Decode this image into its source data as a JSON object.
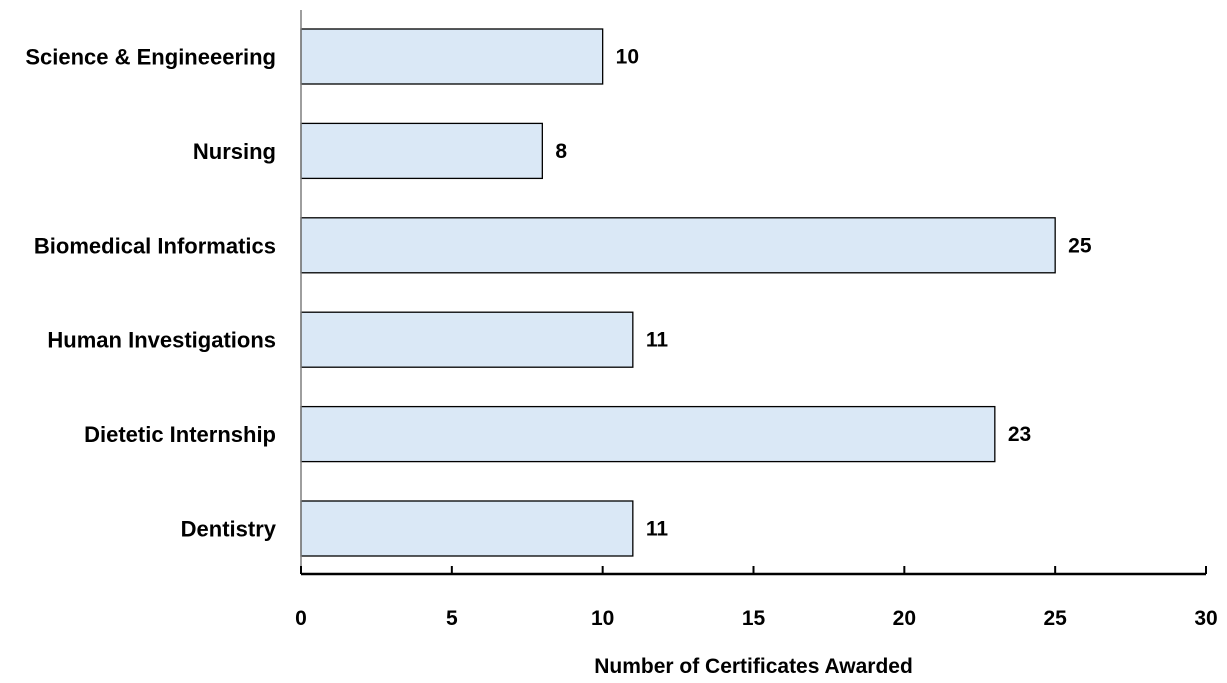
{
  "chart_data": {
    "type": "bar",
    "orientation": "horizontal",
    "categories": [
      "Science & Engineeering",
      "Nursing",
      "Biomedical Informatics",
      "Human Investigations",
      "Dietetic Internship",
      "Dentistry"
    ],
    "values": [
      10,
      8,
      25,
      11,
      23,
      11
    ],
    "data_labels": [
      "10",
      "8",
      "25",
      "11",
      "23",
      "11"
    ],
    "xlabel": "Number of Certificates Awarded",
    "ylabel": "",
    "xlim": [
      0,
      30
    ],
    "x_ticks": [
      0,
      5,
      10,
      15,
      20,
      25,
      30
    ],
    "x_tick_labels": [
      "0",
      "5",
      "10",
      "15",
      "20",
      "25",
      "30"
    ],
    "grid": false,
    "legend": "none",
    "bar_color": "#dae8f6",
    "bar_edge_color": "#000000"
  }
}
